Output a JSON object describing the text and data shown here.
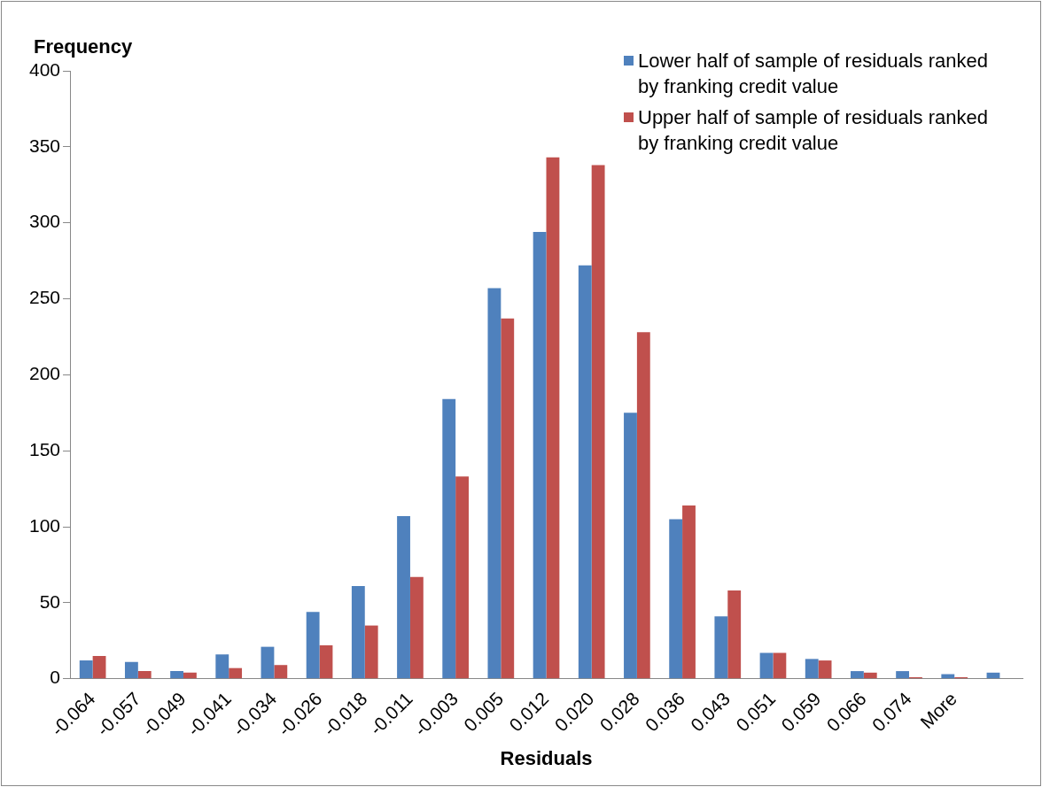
{
  "chart_data": {
    "type": "bar",
    "ylabel": "Frequency",
    "xlabel": "Residuals",
    "categories": [
      "-0.064",
      "-0.057",
      "-0.049",
      "-0.041",
      "-0.034",
      "-0.026",
      "-0.018",
      "-0.011",
      "-0.003",
      "0.005",
      "0.012",
      "0.020",
      "0.028",
      "0.036",
      "0.043",
      "0.051",
      "0.059",
      "0.066",
      "0.074",
      "More",
      null
    ],
    "series": [
      {
        "name": "Lower half of sample of residuals ranked by franking credit value",
        "color": "#4f81bd",
        "values": [
          12,
          11,
          5,
          16,
          21,
          44,
          61,
          107,
          184,
          257,
          294,
          272,
          175,
          105,
          41,
          17,
          13,
          5,
          5,
          3,
          4
        ]
      },
      {
        "name": "Upper half of sample of residuals ranked by franking credit value",
        "color": "#c0504d",
        "values": [
          15,
          5,
          4,
          7,
          9,
          22,
          35,
          67,
          133,
          237,
          343,
          338,
          228,
          114,
          58,
          17,
          12,
          4,
          1,
          1,
          null
        ]
      }
    ],
    "ylim": [
      0,
      400
    ],
    "yticks": [
      0,
      50,
      100,
      150,
      200,
      250,
      300,
      350,
      400
    ],
    "grid": false,
    "legend": "top right"
  }
}
